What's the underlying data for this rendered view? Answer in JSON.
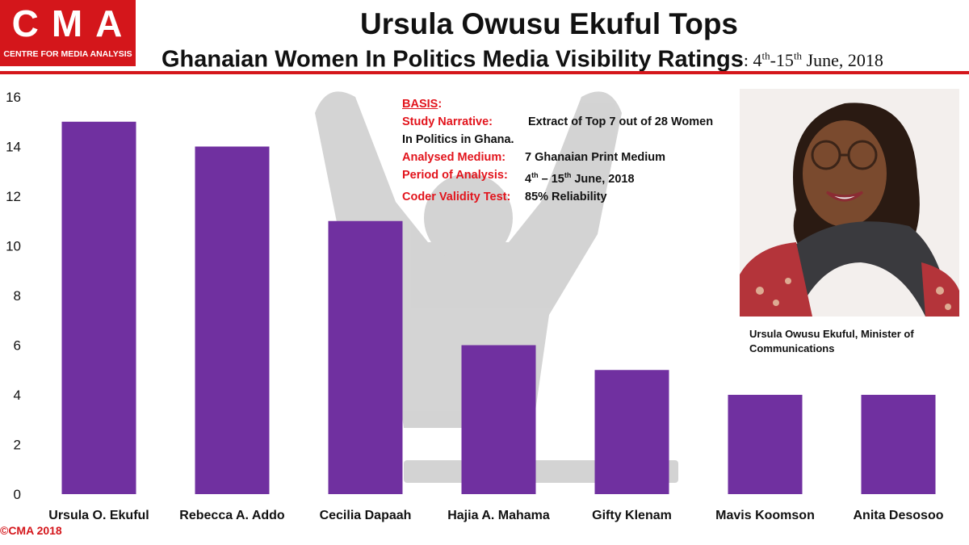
{
  "logo": {
    "letters": "CMA",
    "tagline": "CENTRE FOR MEDIA ANALYSIS"
  },
  "header": {
    "title": "Ursula Owusu Ekuful Tops",
    "subtitle": "Ghanaian Women In Politics Media Visibility Ratings",
    "date_start": "4",
    "date_start_suffix": "th",
    "date_sep": "-15",
    "date_end_suffix": "th",
    "date_year": " June, 2018"
  },
  "basis": {
    "heading": "BASIS",
    "study_narrative_label": "Study Narrative:",
    "study_narrative_value": "Extract of Top 7 out of 28 Women",
    "study_narrative_cont": "In Politics in Ghana.",
    "medium_label": "Analysed Medium:",
    "medium_value": "7 Ghanaian Print Medium",
    "period_label": "Period of Analysis:",
    "period_value_a": "4",
    "period_value_a_suffix": "th",
    "period_value_b": " – 15",
    "period_value_b_suffix": "th",
    "period_value_c": "  June, 2018",
    "validity_label": "Coder Validity Test:",
    "validity_value": "85% Reliability"
  },
  "photo": {
    "caption": "Ursula Owusu Ekuful, Minister of Communications"
  },
  "footer": {
    "copyright": "©CMA 2018"
  },
  "colors": {
    "bar": "#7030a0",
    "brand_red": "#d4161b",
    "label_red": "#e2141c"
  },
  "chart_data": {
    "type": "bar",
    "categories": [
      "Ursula O. Ekuful",
      "Rebecca A. Addo",
      "Cecilia  Dapaah",
      "Hajia A. Mahama",
      "Gifty Klenam",
      "Mavis Koomson",
      "Anita Desosoo"
    ],
    "values": [
      15,
      14,
      11,
      6,
      5,
      4,
      4
    ],
    "ylim": [
      0,
      16
    ],
    "yticks": [
      0,
      2,
      4,
      6,
      8,
      10,
      12,
      14,
      16
    ],
    "grid": false,
    "legend": "none"
  }
}
